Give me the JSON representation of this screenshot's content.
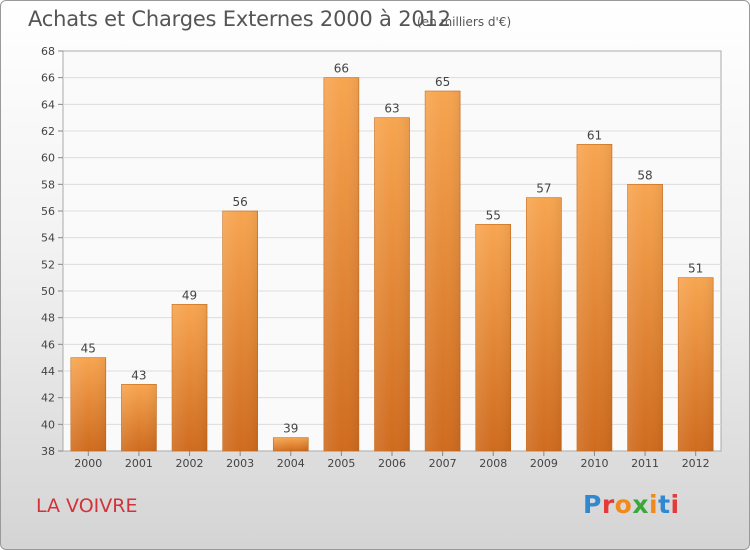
{
  "header": {
    "title": "Achats et Charges Externes 2000 à 2012",
    "unit": "(en milliers d'€)"
  },
  "footer": {
    "town": "LA VOIVRE",
    "logo_text": "Proxiti",
    "logo_colors": [
      "#2f88d0",
      "#e33a3a",
      "#f08a1c",
      "#39a838",
      "#f08a1c",
      "#2f88d0",
      "#e33a3a"
    ]
  },
  "chart_data": {
    "type": "bar",
    "categories": [
      "2000",
      "2001",
      "2002",
      "2003",
      "2004",
      "2005",
      "2006",
      "2007",
      "2008",
      "2009",
      "2010",
      "2011",
      "2012"
    ],
    "values": [
      45,
      43,
      49,
      56,
      39,
      66,
      63,
      65,
      55,
      57,
      61,
      58,
      51
    ],
    "ylim": [
      38,
      68
    ],
    "yticks": [
      38,
      40,
      42,
      44,
      46,
      48,
      50,
      52,
      54,
      56,
      58,
      60,
      62,
      64,
      66,
      68
    ],
    "grid": true,
    "data_labels": true,
    "bar_color_top": "#f7a550",
    "bar_color_bottom": "#cf6b1e"
  }
}
